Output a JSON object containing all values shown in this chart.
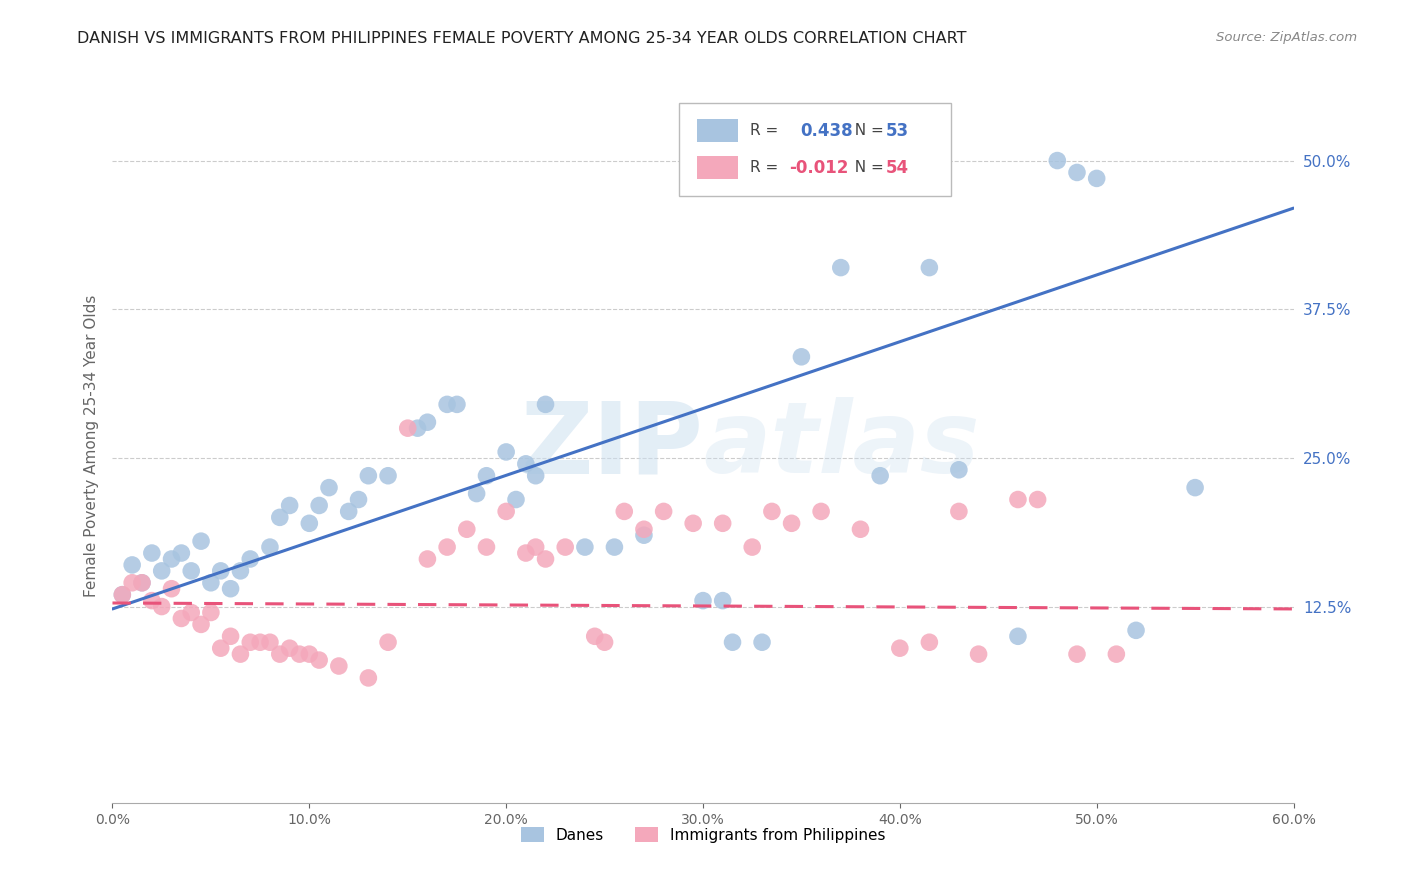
{
  "title": "DANISH VS IMMIGRANTS FROM PHILIPPINES FEMALE POVERTY AMONG 25-34 YEAR OLDS CORRELATION CHART",
  "source": "Source: ZipAtlas.com",
  "ylabel": "Female Poverty Among 25-34 Year Olds",
  "xlim": [
    0.0,
    0.6
  ],
  "ylim": [
    -0.04,
    0.56
  ],
  "xticks": [
    0.0,
    0.1,
    0.2,
    0.3,
    0.4,
    0.5,
    0.6
  ],
  "yticks": [
    0.125,
    0.25,
    0.375,
    0.5
  ],
  "ytick_labels": [
    "12.5%",
    "25.0%",
    "37.5%",
    "50.0%"
  ],
  "xtick_labels": [
    "0.0%",
    "10.0%",
    "20.0%",
    "30.0%",
    "40.0%",
    "50.0%",
    "60.0%"
  ],
  "danes_R": 0.438,
  "danes_N": 53,
  "immigrants_R": -0.012,
  "immigrants_N": 54,
  "danes_color": "#a8c4e0",
  "immigrants_color": "#f4a8bb",
  "danes_line_color": "#4472c4",
  "immigrants_line_color": "#e8537a",
  "watermark": "ZIPatlas",
  "danes_x": [
    0.005,
    0.01,
    0.015,
    0.02,
    0.025,
    0.03,
    0.035,
    0.04,
    0.045,
    0.05,
    0.055,
    0.06,
    0.065,
    0.07,
    0.08,
    0.085,
    0.09,
    0.1,
    0.105,
    0.11,
    0.12,
    0.125,
    0.13,
    0.14,
    0.155,
    0.16,
    0.17,
    0.175,
    0.185,
    0.19,
    0.2,
    0.205,
    0.21,
    0.215,
    0.22,
    0.24,
    0.255,
    0.27,
    0.3,
    0.31,
    0.315,
    0.33,
    0.35,
    0.37,
    0.39,
    0.415,
    0.43,
    0.46,
    0.48,
    0.49,
    0.5,
    0.52,
    0.55
  ],
  "danes_y": [
    0.135,
    0.16,
    0.145,
    0.17,
    0.155,
    0.165,
    0.17,
    0.155,
    0.18,
    0.145,
    0.155,
    0.14,
    0.155,
    0.165,
    0.175,
    0.2,
    0.21,
    0.195,
    0.21,
    0.225,
    0.205,
    0.215,
    0.235,
    0.235,
    0.275,
    0.28,
    0.295,
    0.295,
    0.22,
    0.235,
    0.255,
    0.215,
    0.245,
    0.235,
    0.295,
    0.175,
    0.175,
    0.185,
    0.13,
    0.13,
    0.095,
    0.095,
    0.335,
    0.41,
    0.235,
    0.41,
    0.24,
    0.1,
    0.5,
    0.49,
    0.485,
    0.105,
    0.225
  ],
  "immigrants_x": [
    0.005,
    0.01,
    0.015,
    0.02,
    0.025,
    0.03,
    0.035,
    0.04,
    0.045,
    0.05,
    0.055,
    0.06,
    0.065,
    0.07,
    0.075,
    0.08,
    0.085,
    0.09,
    0.095,
    0.1,
    0.105,
    0.115,
    0.13,
    0.14,
    0.15,
    0.16,
    0.17,
    0.18,
    0.19,
    0.2,
    0.21,
    0.215,
    0.22,
    0.23,
    0.245,
    0.25,
    0.26,
    0.27,
    0.28,
    0.295,
    0.31,
    0.325,
    0.335,
    0.345,
    0.36,
    0.38,
    0.4,
    0.415,
    0.43,
    0.44,
    0.46,
    0.47,
    0.49,
    0.51
  ],
  "immigrants_y": [
    0.135,
    0.145,
    0.145,
    0.13,
    0.125,
    0.14,
    0.115,
    0.12,
    0.11,
    0.12,
    0.09,
    0.1,
    0.085,
    0.095,
    0.095,
    0.095,
    0.085,
    0.09,
    0.085,
    0.085,
    0.08,
    0.075,
    0.065,
    0.095,
    0.275,
    0.165,
    0.175,
    0.19,
    0.175,
    0.205,
    0.17,
    0.175,
    0.165,
    0.175,
    0.1,
    0.095,
    0.205,
    0.19,
    0.205,
    0.195,
    0.195,
    0.175,
    0.205,
    0.195,
    0.205,
    0.19,
    0.09,
    0.095,
    0.205,
    0.085,
    0.215,
    0.215,
    0.085,
    0.085
  ],
  "danes_line_x0": 0.0,
  "danes_line_y0": 0.123,
  "danes_line_x1": 0.6,
  "danes_line_y1": 0.46,
  "immigrants_line_x0": 0.0,
  "immigrants_line_y0": 0.128,
  "immigrants_line_x1": 0.6,
  "immigrants_line_y1": 0.123
}
